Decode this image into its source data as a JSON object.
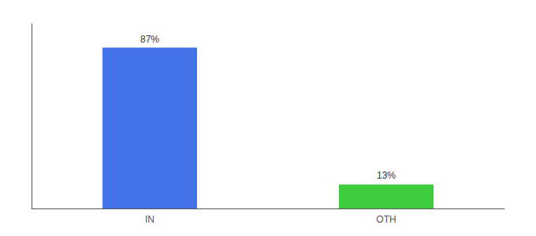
{
  "chart_data": {
    "type": "bar",
    "categories": [
      "IN",
      "OTH"
    ],
    "values": [
      87,
      13
    ],
    "value_labels": [
      "87%",
      "13%"
    ],
    "colors": [
      "#4472e8",
      "#3dcc3d"
    ],
    "ylim": [
      0,
      100
    ],
    "data_labels": true,
    "tick_labels": "x",
    "grid": false
  }
}
